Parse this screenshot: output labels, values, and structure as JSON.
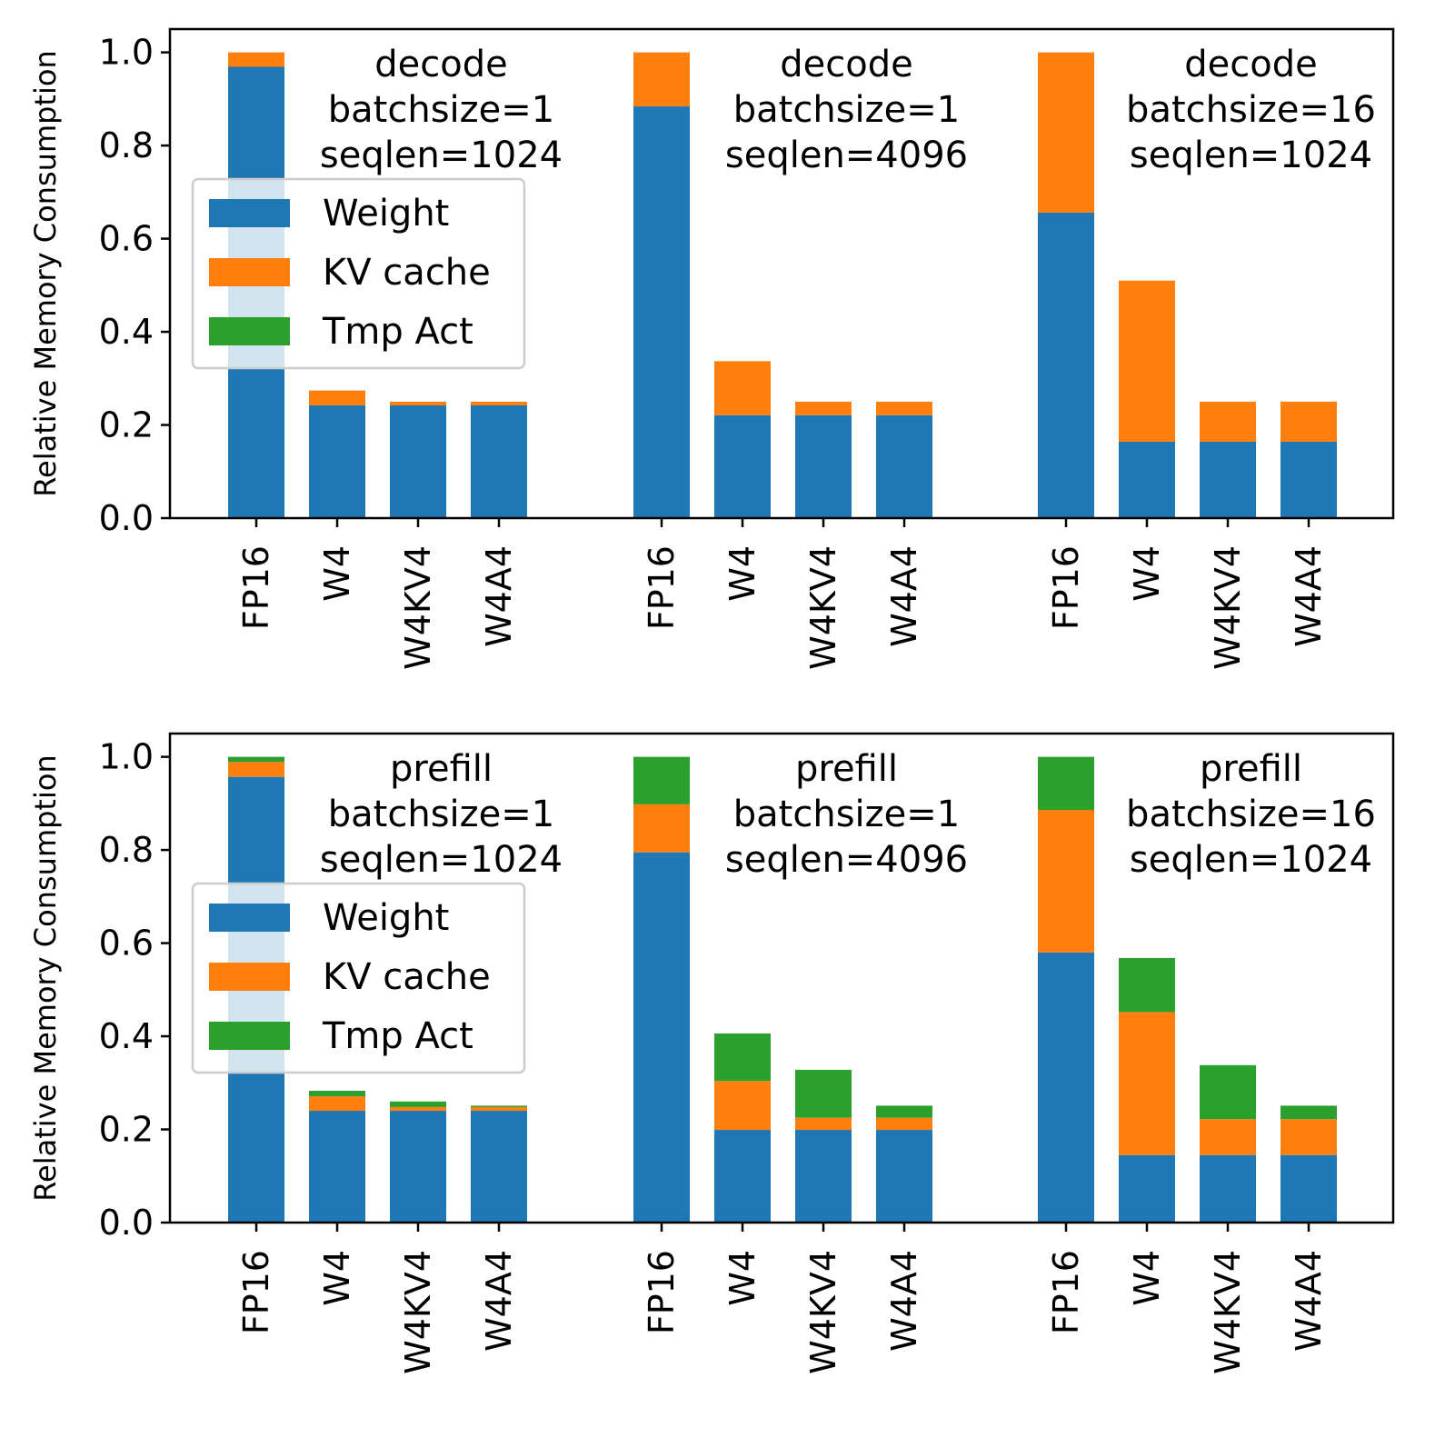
{
  "chart_data": [
    {
      "type": "bar",
      "stacked": true,
      "ylabel": "Relative Memory Consumption",
      "ylim": [
        0,
        1.05
      ],
      "yticks": [
        "0.0",
        "0.2",
        "0.4",
        "0.6",
        "0.8",
        "1.0"
      ],
      "legend": {
        "placement": "upper-left",
        "entries": [
          {
            "label": "Weight",
            "color": "#1f77b4"
          },
          {
            "label": "KV cache",
            "color": "#ff7f0e"
          },
          {
            "label": "Tmp Act",
            "color": "#2ca02c"
          }
        ]
      },
      "groups": [
        {
          "annotation": [
            "decode",
            "batchsize=1",
            "seqlen=1024"
          ],
          "categories": [
            "FP16",
            "W4",
            "W4KV4",
            "W4A4"
          ],
          "series": [
            {
              "name": "Weight",
              "values": [
                0.969,
                0.242,
                0.242,
                0.242
              ]
            },
            {
              "name": "KV cache",
              "values": [
                0.031,
                0.032,
                0.008,
                0.008
              ]
            },
            {
              "name": "Tmp Act",
              "values": [
                0,
                0,
                0,
                0
              ]
            }
          ]
        },
        {
          "annotation": [
            "decode",
            "batchsize=1",
            "seqlen=4096"
          ],
          "categories": [
            "FP16",
            "W4",
            "W4KV4",
            "W4A4"
          ],
          "series": [
            {
              "name": "Weight",
              "values": [
                0.884,
                0.221,
                0.221,
                0.221
              ]
            },
            {
              "name": "KV cache",
              "values": [
                0.116,
                0.116,
                0.029,
                0.029
              ]
            },
            {
              "name": "Tmp Act",
              "values": [
                0,
                0,
                0,
                0
              ]
            }
          ]
        },
        {
          "annotation": [
            "decode",
            "batchsize=16",
            "seqlen=1024"
          ],
          "categories": [
            "FP16",
            "W4",
            "W4KV4",
            "W4A4"
          ],
          "series": [
            {
              "name": "Weight",
              "values": [
                0.656,
                0.164,
                0.164,
                0.164
              ]
            },
            {
              "name": "KV cache",
              "values": [
                0.344,
                0.346,
                0.086,
                0.086
              ]
            },
            {
              "name": "Tmp Act",
              "values": [
                0,
                0,
                0,
                0
              ]
            }
          ]
        }
      ]
    },
    {
      "type": "bar",
      "stacked": true,
      "ylabel": "Relative Memory Consumption",
      "ylim": [
        0,
        1.05
      ],
      "yticks": [
        "0.0",
        "0.2",
        "0.4",
        "0.6",
        "0.8",
        "1.0"
      ],
      "legend": {
        "placement": "upper-left",
        "entries": [
          {
            "label": "Weight",
            "color": "#1f77b4"
          },
          {
            "label": "KV cache",
            "color": "#ff7f0e"
          },
          {
            "label": "Tmp Act",
            "color": "#2ca02c"
          }
        ]
      },
      "groups": [
        {
          "annotation": [
            "prefill",
            "batchsize=1",
            "seqlen=1024"
          ],
          "categories": [
            "FP16",
            "W4",
            "W4KV4",
            "W4A4"
          ],
          "series": [
            {
              "name": "Weight",
              "values": [
                0.957,
                0.24,
                0.24,
                0.24
              ]
            },
            {
              "name": "KV cache",
              "values": [
                0.032,
                0.031,
                0.008,
                0.008
              ]
            },
            {
              "name": "Tmp Act",
              "values": [
                0.011,
                0.012,
                0.012,
                0.003
              ]
            }
          ]
        },
        {
          "annotation": [
            "prefill",
            "batchsize=1",
            "seqlen=4096"
          ],
          "categories": [
            "FP16",
            "W4",
            "W4KV4",
            "W4A4"
          ],
          "series": [
            {
              "name": "Weight",
              "values": [
                0.795,
                0.199,
                0.199,
                0.199
              ]
            },
            {
              "name": "KV cache",
              "values": [
                0.103,
                0.105,
                0.026,
                0.026
              ]
            },
            {
              "name": "Tmp Act",
              "values": [
                0.102,
                0.102,
                0.103,
                0.026
              ]
            }
          ]
        },
        {
          "annotation": [
            "prefill",
            "batchsize=16",
            "seqlen=1024"
          ],
          "categories": [
            "FP16",
            "W4",
            "W4KV4",
            "W4A4"
          ],
          "series": [
            {
              "name": "Weight",
              "values": [
                0.58,
                0.145,
                0.145,
                0.145
              ]
            },
            {
              "name": "KV cache",
              "values": [
                0.306,
                0.307,
                0.077,
                0.077
              ]
            },
            {
              "name": "Tmp Act",
              "values": [
                0.114,
                0.116,
                0.116,
                0.029
              ]
            }
          ]
        }
      ]
    }
  ]
}
